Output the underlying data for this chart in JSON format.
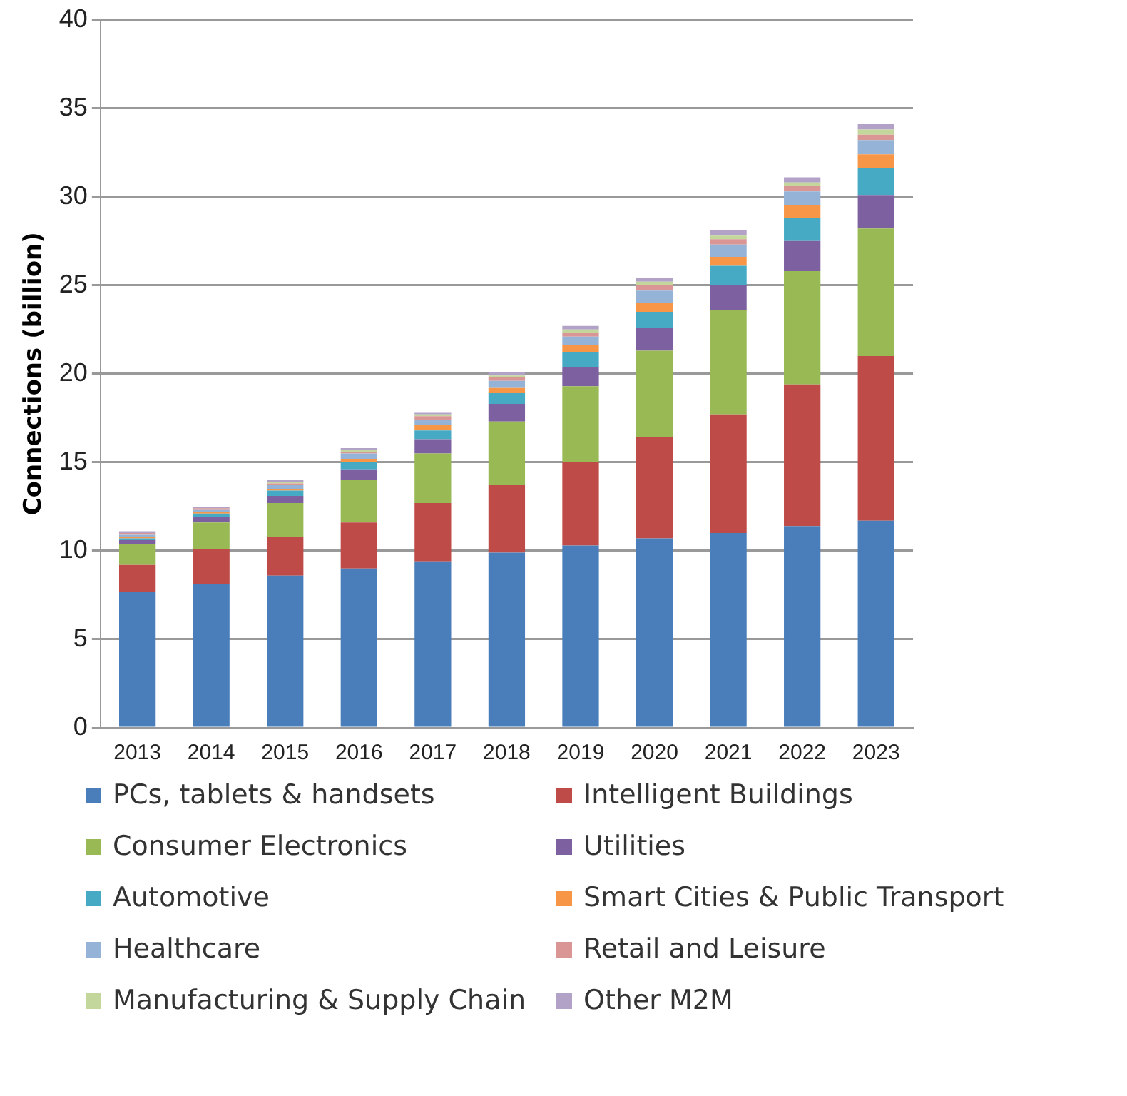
{
  "chart_data": {
    "type": "bar",
    "stacked": true,
    "ylabel": "Connections (billion)",
    "categories": [
      "2013",
      "2014",
      "2015",
      "2016",
      "2017",
      "2018",
      "2019",
      "2020",
      "2021",
      "2022",
      "2023"
    ],
    "ylim": [
      0,
      40
    ],
    "yticks": [
      0,
      5,
      10,
      15,
      20,
      25,
      30,
      35,
      40
    ],
    "grid": "y",
    "legend": "bottom",
    "series": [
      {
        "name": "PCs, tablets & handsets",
        "color": "#4a7ebb",
        "values": [
          7.7,
          8.1,
          8.6,
          9.0,
          9.4,
          9.9,
          10.3,
          10.7,
          11.0,
          11.4,
          11.7
        ]
      },
      {
        "name": "Intelligent Buildings",
        "color": "#be4b48",
        "values": [
          1.5,
          2.0,
          2.2,
          2.6,
          3.3,
          3.8,
          4.7,
          5.7,
          6.7,
          8.0,
          9.3
        ]
      },
      {
        "name": "Consumer Electronics",
        "color": "#98b954",
        "values": [
          1.2,
          1.5,
          1.9,
          2.4,
          2.8,
          3.6,
          4.3,
          4.9,
          5.9,
          6.4,
          7.2
        ]
      },
      {
        "name": "Utilities",
        "color": "#7d60a0",
        "values": [
          0.2,
          0.3,
          0.4,
          0.6,
          0.8,
          1.0,
          1.1,
          1.3,
          1.4,
          1.7,
          1.9
        ]
      },
      {
        "name": "Automotive",
        "color": "#46aac4",
        "values": [
          0.1,
          0.2,
          0.3,
          0.4,
          0.5,
          0.6,
          0.8,
          0.9,
          1.1,
          1.3,
          1.5
        ]
      },
      {
        "name": "Smart Cities & Public Transport",
        "color": "#f79646",
        "values": [
          0.1,
          0.1,
          0.1,
          0.2,
          0.3,
          0.3,
          0.4,
          0.5,
          0.5,
          0.7,
          0.8
        ]
      },
      {
        "name": "Healthcare",
        "color": "#95b3d7",
        "values": [
          0.1,
          0.1,
          0.2,
          0.3,
          0.3,
          0.4,
          0.5,
          0.7,
          0.7,
          0.8,
          0.8
        ]
      },
      {
        "name": "Retail and Leisure",
        "color": "#d99694",
        "values": [
          0.1,
          0.1,
          0.1,
          0.1,
          0.2,
          0.2,
          0.2,
          0.3,
          0.3,
          0.3,
          0.3
        ]
      },
      {
        "name": "Manufacturing & Supply Chain",
        "color": "#c3d69b",
        "values": [
          0.0,
          0.0,
          0.1,
          0.1,
          0.1,
          0.1,
          0.2,
          0.2,
          0.2,
          0.2,
          0.3
        ]
      },
      {
        "name": "Other M2M",
        "color": "#b3a2c7",
        "values": [
          0.1,
          0.1,
          0.1,
          0.1,
          0.1,
          0.2,
          0.2,
          0.2,
          0.3,
          0.3,
          0.3
        ]
      }
    ]
  }
}
